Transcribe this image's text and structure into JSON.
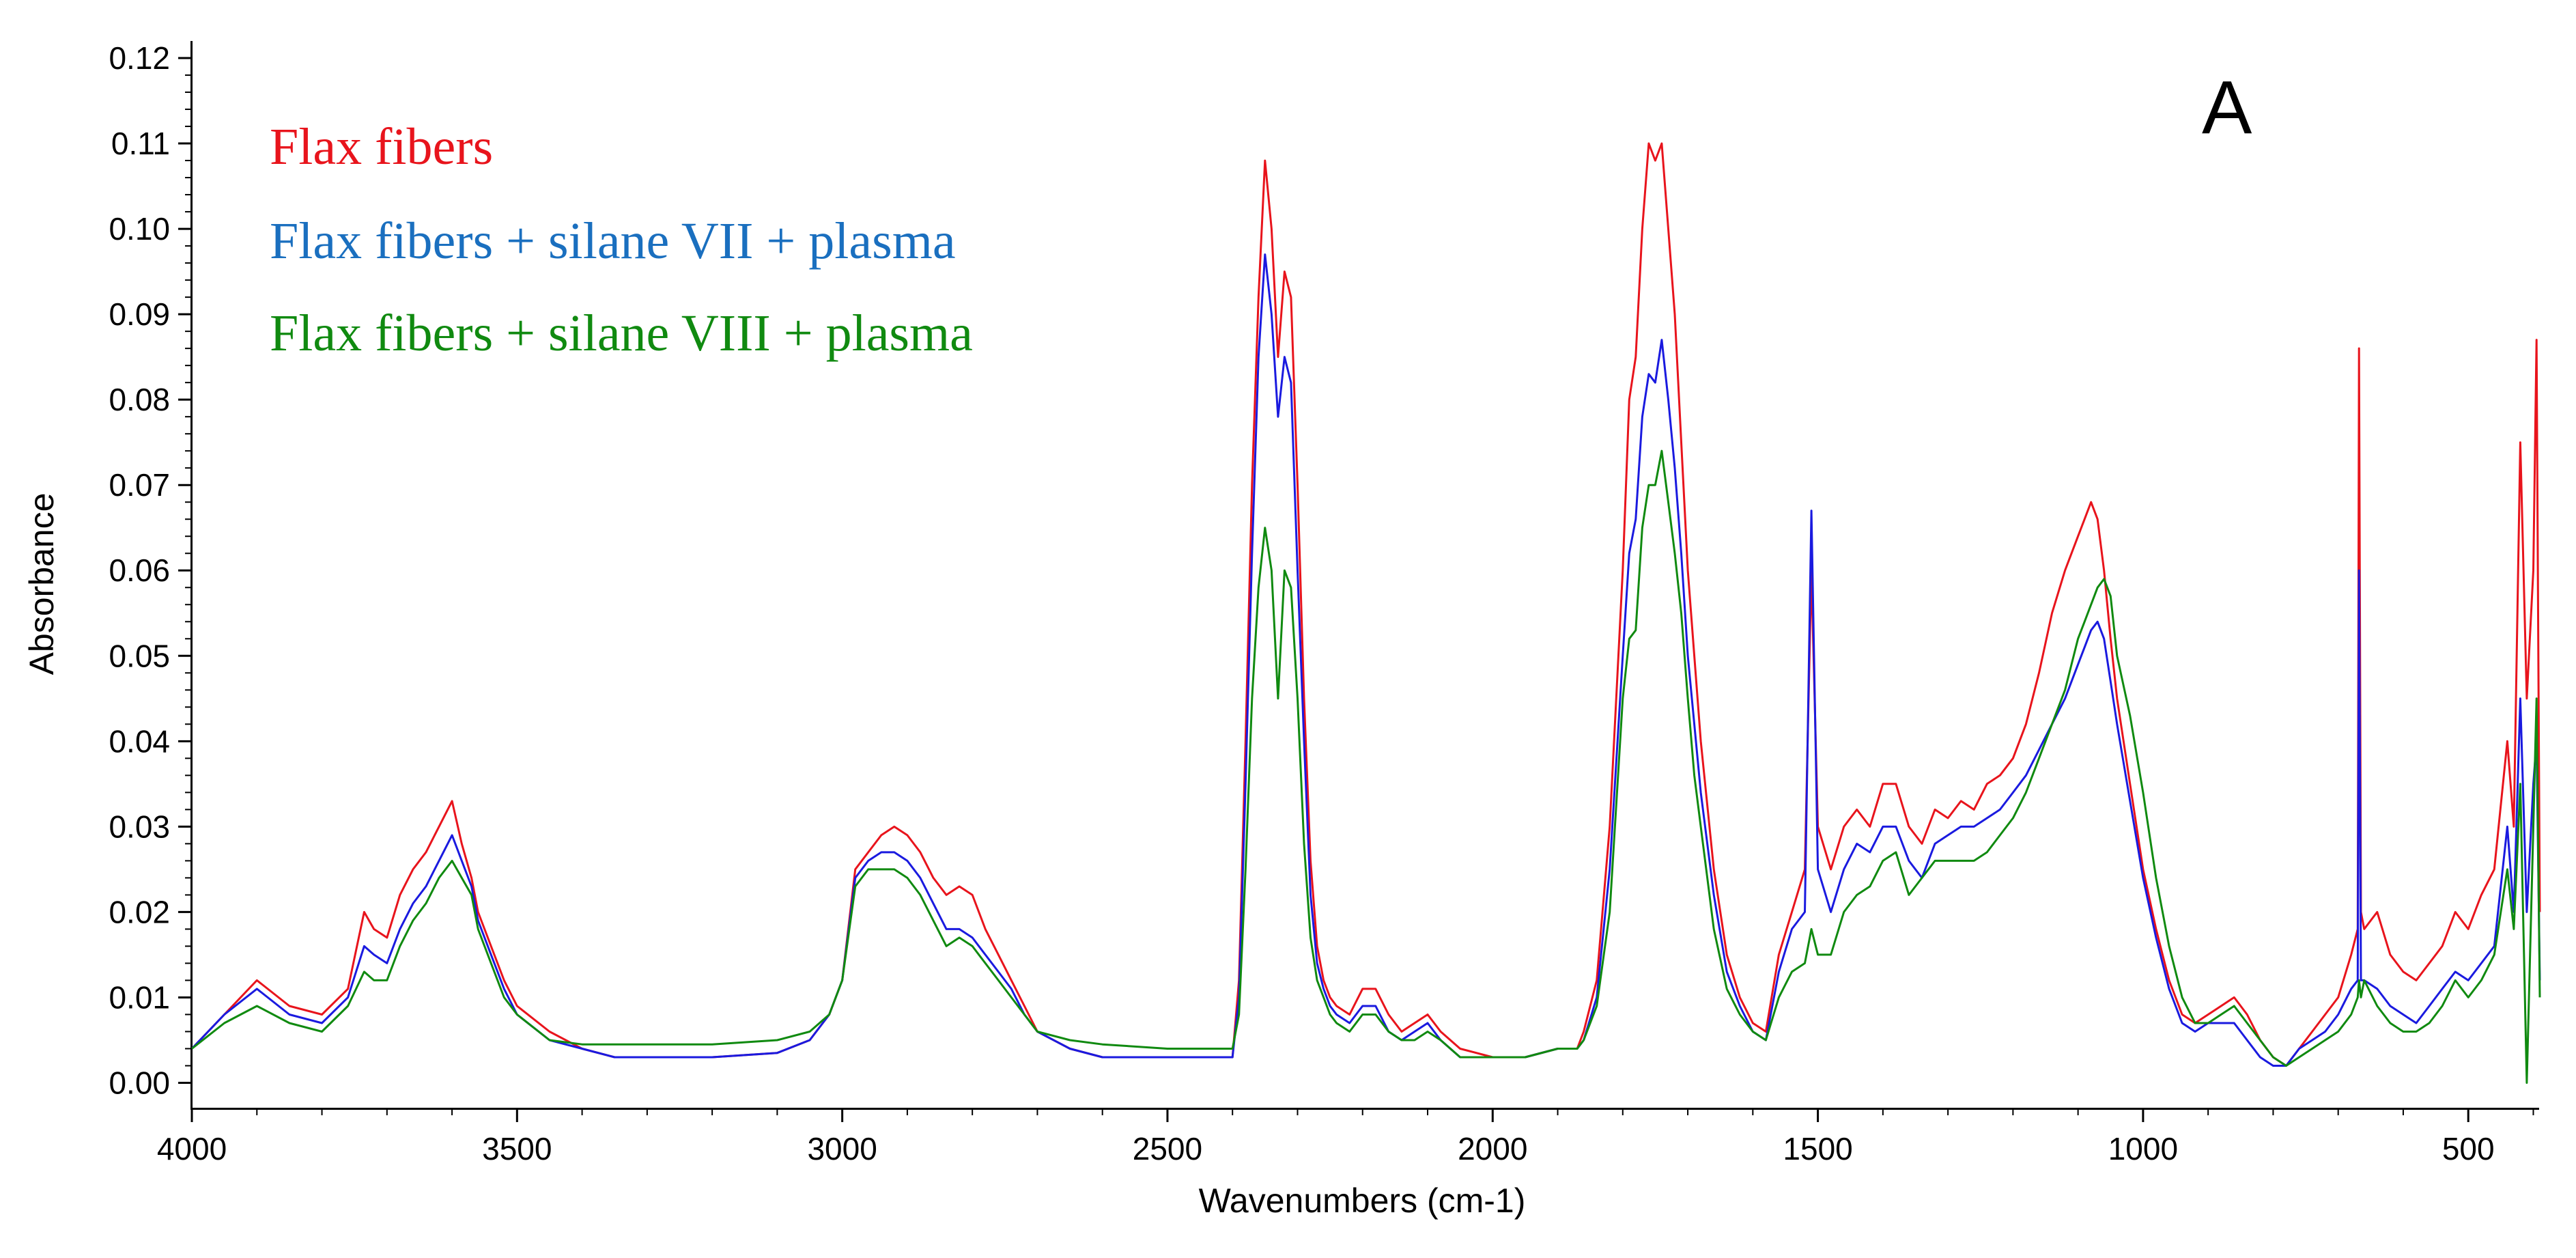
{
  "chart_data": {
    "type": "line",
    "title": "",
    "panel_label": "A",
    "xlabel": "Wavenumbers (cm-1)",
    "ylabel": "Absorbance",
    "xlim": [
      4000,
      390
    ],
    "ylim": [
      -0.003,
      0.122
    ],
    "x_ticks": [
      4000,
      3500,
      3000,
      2500,
      2000,
      1500,
      1000,
      500
    ],
    "x_tick_labels": [
      "4000",
      "3500",
      "3000",
      "2500",
      "2000",
      "1500",
      "1000",
      "500"
    ],
    "y_ticks": [
      0.0,
      0.01,
      0.02,
      0.03,
      0.04,
      0.05,
      0.06,
      0.07,
      0.08,
      0.09,
      0.1,
      0.11,
      0.12
    ],
    "y_tick_labels": [
      "0.00",
      "0.01",
      "0.02",
      "0.03",
      "0.04",
      "0.05",
      "0.06",
      "0.07",
      "0.08",
      "0.09",
      "0.10",
      "0.11",
      "0.12"
    ],
    "grid": false,
    "legend_position": "top-left",
    "series": [
      {
        "name": "Flax fibers",
        "color": "#e8141c",
        "x": [
          4000,
          3950,
          3900,
          3850,
          3800,
          3760,
          3735,
          3720,
          3700,
          3680,
          3660,
          3640,
          3620,
          3600,
          3585,
          3570,
          3560,
          3540,
          3520,
          3500,
          3450,
          3400,
          3350,
          3300,
          3200,
          3100,
          3050,
          3020,
          3000,
          2980,
          2960,
          2940,
          2920,
          2900,
          2880,
          2860,
          2840,
          2820,
          2800,
          2780,
          2760,
          2740,
          2720,
          2700,
          2650,
          2600,
          2500,
          2400,
          2390,
          2380,
          2370,
          2360,
          2350,
          2340,
          2330,
          2320,
          2310,
          2300,
          2290,
          2280,
          2270,
          2260,
          2250,
          2240,
          2220,
          2200,
          2180,
          2160,
          2140,
          2120,
          2100,
          2080,
          2050,
          2000,
          1950,
          1900,
          1870,
          1860,
          1840,
          1820,
          1800,
          1790,
          1780,
          1770,
          1760,
          1750,
          1740,
          1730,
          1720,
          1710,
          1700,
          1690,
          1680,
          1660,
          1640,
          1620,
          1600,
          1580,
          1560,
          1540,
          1520,
          1510,
          1500,
          1480,
          1460,
          1440,
          1420,
          1400,
          1380,
          1360,
          1340,
          1320,
          1300,
          1280,
          1260,
          1240,
          1220,
          1200,
          1180,
          1160,
          1140,
          1120,
          1110,
          1100,
          1090,
          1080,
          1070,
          1060,
          1050,
          1040,
          1020,
          1000,
          980,
          960,
          940,
          920,
          900,
          880,
          860,
          840,
          820,
          800,
          780,
          760,
          740,
          720,
          700,
          680,
          670,
          668,
          665,
          660,
          640,
          620,
          600,
          580,
          560,
          540,
          520,
          500,
          480,
          460,
          440,
          430,
          420,
          410,
          400,
          395,
          390
        ],
        "values": [
          0.004,
          0.008,
          0.012,
          0.009,
          0.008,
          0.011,
          0.02,
          0.018,
          0.017,
          0.022,
          0.025,
          0.027,
          0.03,
          0.033,
          0.028,
          0.024,
          0.02,
          0.016,
          0.012,
          0.009,
          0.006,
          0.004,
          0.003,
          0.003,
          0.003,
          0.0035,
          0.005,
          0.008,
          0.012,
          0.025,
          0.027,
          0.029,
          0.03,
          0.029,
          0.027,
          0.024,
          0.022,
          0.023,
          0.022,
          0.018,
          0.015,
          0.012,
          0.009,
          0.006,
          0.004,
          0.003,
          0.003,
          0.003,
          0.012,
          0.04,
          0.07,
          0.092,
          0.108,
          0.1,
          0.085,
          0.095,
          0.092,
          0.07,
          0.045,
          0.026,
          0.016,
          0.012,
          0.01,
          0.009,
          0.008,
          0.011,
          0.011,
          0.008,
          0.006,
          0.007,
          0.008,
          0.006,
          0.004,
          0.003,
          0.003,
          0.004,
          0.004,
          0.006,
          0.012,
          0.03,
          0.06,
          0.08,
          0.085,
          0.1,
          0.11,
          0.108,
          0.11,
          0.1,
          0.09,
          0.075,
          0.06,
          0.05,
          0.04,
          0.025,
          0.015,
          0.01,
          0.007,
          0.006,
          0.015,
          0.02,
          0.025,
          0.06,
          0.03,
          0.025,
          0.03,
          0.032,
          0.03,
          0.035,
          0.035,
          0.03,
          0.028,
          0.032,
          0.031,
          0.033,
          0.032,
          0.035,
          0.036,
          0.038,
          0.042,
          0.048,
          0.055,
          0.06,
          0.062,
          0.064,
          0.066,
          0.068,
          0.066,
          0.06,
          0.052,
          0.045,
          0.035,
          0.025,
          0.018,
          0.012,
          0.008,
          0.007,
          0.008,
          0.009,
          0.01,
          0.008,
          0.005,
          0.003,
          0.002,
          0.004,
          0.006,
          0.008,
          0.01,
          0.015,
          0.018,
          0.086,
          0.02,
          0.018,
          0.02,
          0.015,
          0.013,
          0.012,
          0.014,
          0.016,
          0.02,
          0.018,
          0.022,
          0.025,
          0.04,
          0.03,
          0.075,
          0.045,
          0.06,
          0.087,
          0.02
        ]
      },
      {
        "name": "Flax fibers + silane VII + plasma",
        "color": "#1a1adf",
        "x": [
          4000,
          3950,
          3900,
          3850,
          3800,
          3760,
          3735,
          3720,
          3700,
          3680,
          3660,
          3640,
          3620,
          3600,
          3585,
          3570,
          3560,
          3540,
          3520,
          3500,
          3450,
          3400,
          3350,
          3300,
          3200,
          3100,
          3050,
          3020,
          3000,
          2980,
          2960,
          2940,
          2920,
          2900,
          2880,
          2860,
          2840,
          2820,
          2800,
          2780,
          2760,
          2740,
          2720,
          2700,
          2650,
          2600,
          2500,
          2400,
          2390,
          2380,
          2370,
          2360,
          2350,
          2340,
          2330,
          2320,
          2310,
          2300,
          2290,
          2280,
          2270,
          2260,
          2250,
          2240,
          2220,
          2200,
          2180,
          2160,
          2140,
          2120,
          2100,
          2080,
          2050,
          2000,
          1950,
          1900,
          1870,
          1860,
          1840,
          1820,
          1800,
          1790,
          1780,
          1770,
          1760,
          1750,
          1740,
          1730,
          1720,
          1710,
          1700,
          1690,
          1680,
          1660,
          1640,
          1620,
          1600,
          1580,
          1560,
          1540,
          1520,
          1510,
          1500,
          1480,
          1460,
          1440,
          1420,
          1400,
          1380,
          1360,
          1340,
          1320,
          1300,
          1280,
          1260,
          1240,
          1220,
          1200,
          1180,
          1160,
          1140,
          1120,
          1110,
          1100,
          1090,
          1080,
          1070,
          1060,
          1050,
          1040,
          1020,
          1000,
          980,
          960,
          940,
          920,
          900,
          880,
          860,
          840,
          820,
          800,
          780,
          760,
          740,
          720,
          700,
          680,
          670,
          668,
          665,
          660,
          640,
          620,
          600,
          580,
          560,
          540,
          520,
          500,
          480,
          460,
          440,
          430,
          420,
          410,
          400,
          395,
          390
        ],
        "values": [
          0.004,
          0.008,
          0.011,
          0.008,
          0.007,
          0.01,
          0.016,
          0.015,
          0.014,
          0.018,
          0.021,
          0.023,
          0.026,
          0.029,
          0.026,
          0.023,
          0.019,
          0.015,
          0.011,
          0.008,
          0.005,
          0.004,
          0.003,
          0.003,
          0.003,
          0.0035,
          0.005,
          0.008,
          0.012,
          0.024,
          0.026,
          0.027,
          0.027,
          0.026,
          0.024,
          0.021,
          0.018,
          0.018,
          0.017,
          0.015,
          0.013,
          0.011,
          0.008,
          0.006,
          0.004,
          0.003,
          0.003,
          0.003,
          0.01,
          0.035,
          0.062,
          0.085,
          0.097,
          0.09,
          0.078,
          0.085,
          0.082,
          0.06,
          0.04,
          0.022,
          0.014,
          0.011,
          0.009,
          0.008,
          0.007,
          0.009,
          0.009,
          0.006,
          0.005,
          0.006,
          0.007,
          0.005,
          0.003,
          0.003,
          0.003,
          0.004,
          0.004,
          0.005,
          0.01,
          0.025,
          0.05,
          0.062,
          0.066,
          0.078,
          0.083,
          0.082,
          0.087,
          0.08,
          0.072,
          0.062,
          0.05,
          0.042,
          0.034,
          0.022,
          0.013,
          0.009,
          0.006,
          0.005,
          0.013,
          0.018,
          0.02,
          0.067,
          0.025,
          0.02,
          0.025,
          0.028,
          0.027,
          0.03,
          0.03,
          0.026,
          0.024,
          0.028,
          0.029,
          0.03,
          0.03,
          0.031,
          0.032,
          0.034,
          0.036,
          0.039,
          0.042,
          0.045,
          0.047,
          0.049,
          0.051,
          0.053,
          0.054,
          0.052,
          0.047,
          0.042,
          0.033,
          0.024,
          0.017,
          0.011,
          0.007,
          0.006,
          0.007,
          0.007,
          0.007,
          0.005,
          0.003,
          0.002,
          0.002,
          0.004,
          0.005,
          0.006,
          0.008,
          0.011,
          0.012,
          0.06,
          0.012,
          0.012,
          0.011,
          0.009,
          0.008,
          0.007,
          0.009,
          0.011,
          0.013,
          0.012,
          0.014,
          0.016,
          0.03,
          0.02,
          0.045,
          0.02,
          0.035,
          0.04,
          0.012
        ]
      },
      {
        "name": "Flax fibers + silane VIII + plasma",
        "color": "#108a10",
        "x": [
          4000,
          3950,
          3900,
          3850,
          3800,
          3760,
          3735,
          3720,
          3700,
          3680,
          3660,
          3640,
          3620,
          3600,
          3585,
          3570,
          3560,
          3540,
          3520,
          3500,
          3450,
          3400,
          3350,
          3300,
          3200,
          3100,
          3050,
          3020,
          3000,
          2980,
          2960,
          2940,
          2920,
          2900,
          2880,
          2860,
          2840,
          2820,
          2800,
          2780,
          2760,
          2740,
          2720,
          2700,
          2650,
          2600,
          2500,
          2400,
          2390,
          2380,
          2370,
          2360,
          2350,
          2340,
          2330,
          2320,
          2310,
          2300,
          2290,
          2280,
          2270,
          2260,
          2250,
          2240,
          2220,
          2200,
          2180,
          2160,
          2140,
          2120,
          2100,
          2080,
          2050,
          2000,
          1950,
          1900,
          1870,
          1860,
          1840,
          1820,
          1800,
          1790,
          1780,
          1770,
          1760,
          1750,
          1740,
          1730,
          1720,
          1710,
          1700,
          1690,
          1680,
          1660,
          1640,
          1620,
          1600,
          1580,
          1560,
          1540,
          1520,
          1510,
          1500,
          1480,
          1460,
          1440,
          1420,
          1400,
          1380,
          1360,
          1340,
          1320,
          1300,
          1280,
          1260,
          1240,
          1220,
          1200,
          1180,
          1160,
          1140,
          1120,
          1110,
          1100,
          1090,
          1080,
          1070,
          1060,
          1050,
          1040,
          1020,
          1000,
          980,
          960,
          940,
          920,
          900,
          880,
          860,
          840,
          820,
          800,
          780,
          760,
          740,
          720,
          700,
          680,
          670,
          668,
          665,
          660,
          640,
          620,
          600,
          580,
          560,
          540,
          520,
          500,
          480,
          460,
          440,
          430,
          420,
          410,
          400,
          395,
          390
        ],
        "values": [
          0.004,
          0.007,
          0.009,
          0.007,
          0.006,
          0.009,
          0.013,
          0.012,
          0.012,
          0.016,
          0.019,
          0.021,
          0.024,
          0.026,
          0.024,
          0.022,
          0.018,
          0.014,
          0.01,
          0.008,
          0.005,
          0.0045,
          0.0045,
          0.0045,
          0.0045,
          0.005,
          0.006,
          0.008,
          0.012,
          0.023,
          0.025,
          0.025,
          0.025,
          0.024,
          0.022,
          0.019,
          0.016,
          0.017,
          0.016,
          0.014,
          0.012,
          0.01,
          0.008,
          0.006,
          0.005,
          0.0045,
          0.004,
          0.004,
          0.008,
          0.025,
          0.045,
          0.058,
          0.065,
          0.06,
          0.045,
          0.06,
          0.058,
          0.045,
          0.028,
          0.017,
          0.012,
          0.01,
          0.008,
          0.007,
          0.006,
          0.008,
          0.008,
          0.006,
          0.005,
          0.005,
          0.006,
          0.005,
          0.003,
          0.003,
          0.003,
          0.004,
          0.004,
          0.005,
          0.009,
          0.02,
          0.045,
          0.052,
          0.053,
          0.065,
          0.07,
          0.07,
          0.074,
          0.068,
          0.062,
          0.055,
          0.045,
          0.036,
          0.03,
          0.018,
          0.011,
          0.008,
          0.006,
          0.005,
          0.01,
          0.013,
          0.014,
          0.018,
          0.015,
          0.015,
          0.02,
          0.022,
          0.023,
          0.026,
          0.027,
          0.022,
          0.024,
          0.026,
          0.026,
          0.026,
          0.026,
          0.027,
          0.029,
          0.031,
          0.034,
          0.038,
          0.042,
          0.046,
          0.049,
          0.052,
          0.054,
          0.056,
          0.058,
          0.059,
          0.057,
          0.05,
          0.043,
          0.034,
          0.024,
          0.016,
          0.01,
          0.007,
          0.007,
          0.008,
          0.009,
          0.007,
          0.005,
          0.003,
          0.002,
          0.003,
          0.004,
          0.005,
          0.006,
          0.008,
          0.01,
          0.012,
          0.01,
          0.012,
          0.009,
          0.007,
          0.006,
          0.006,
          0.007,
          0.009,
          0.012,
          0.01,
          0.012,
          0.015,
          0.025,
          0.018,
          0.035,
          0.0,
          0.03,
          0.045,
          0.01
        ]
      }
    ]
  }
}
